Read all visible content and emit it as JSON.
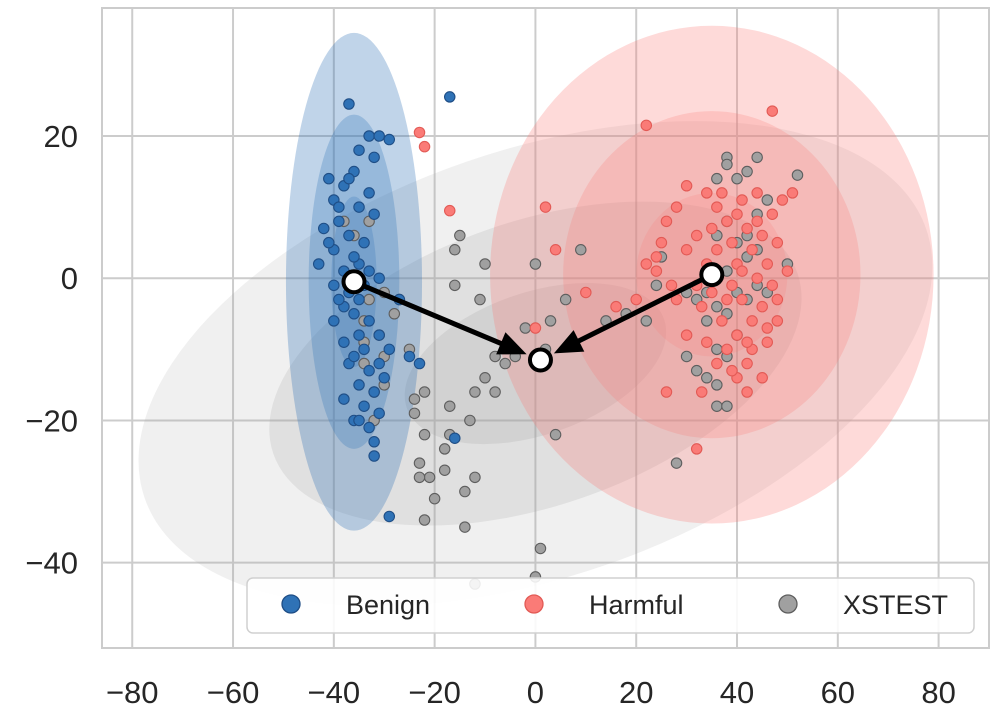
{
  "chart_data": {
    "type": "scatter",
    "title": "",
    "xlabel": "",
    "ylabel": "",
    "xlim": [
      -86,
      90
    ],
    "ylim": [
      -52,
      38
    ],
    "grid": true,
    "x_ticks": [
      -80,
      -60,
      -40,
      -20,
      0,
      20,
      40,
      60,
      80
    ],
    "x_tick_labels": [
      "−80",
      "−60",
      "−40",
      "−20",
      "0",
      "20",
      "40",
      "60",
      "80"
    ],
    "y_ticks": [
      -40,
      -20,
      0,
      20
    ],
    "y_tick_labels": [
      "−40",
      "−20",
      "0",
      "20"
    ],
    "colors": {
      "benign": "#2f72b6",
      "benign_edge": "#1f4e86",
      "harmful": "#fa7b77",
      "harmful_edge": "#e25a55",
      "xstest": "#a0a0a0",
      "xstest_edge": "#5e5e5e",
      "grid": "#cccccc",
      "arrow": "#000000"
    },
    "ellipses": [
      {
        "series": "xstest",
        "cx": 0,
        "cy": -12,
        "rx": 82,
        "ry": 30,
        "angle_deg": 19,
        "opacity": 0.16
      },
      {
        "series": "xstest",
        "cx": 0,
        "cy": -12,
        "rx": 55,
        "ry": 20,
        "angle_deg": 19,
        "opacity": 0.2
      },
      {
        "series": "xstest",
        "cx": 0,
        "cy": -12,
        "rx": 27,
        "ry": 10,
        "angle_deg": 19,
        "opacity": 0.22
      },
      {
        "series": "harmful",
        "cx": 35,
        "cy": 0.5,
        "rx": 44,
        "ry": 35,
        "angle_deg": 0,
        "opacity": 0.28
      },
      {
        "series": "harmful",
        "cx": 35,
        "cy": 0.5,
        "rx": 29.5,
        "ry": 23,
        "angle_deg": 0,
        "opacity": 0.24
      },
      {
        "series": "harmful",
        "cx": 35,
        "cy": 0.5,
        "rx": 15,
        "ry": 11.5,
        "angle_deg": 0,
        "opacity": 0.2
      },
      {
        "series": "benign",
        "cx": -36,
        "cy": -0.5,
        "rx": 13.5,
        "ry": 35,
        "angle_deg": 0,
        "opacity": 0.3
      },
      {
        "series": "benign",
        "cx": -36,
        "cy": -0.5,
        "rx": 9,
        "ry": 23.5,
        "angle_deg": 0,
        "opacity": 0.28
      },
      {
        "series": "benign",
        "cx": -36,
        "cy": -0.5,
        "rx": 4.5,
        "ry": 12,
        "angle_deg": 0,
        "opacity": 0.25
      }
    ],
    "centroids": [
      {
        "name": "benign-centroid",
        "x": -36,
        "y": -0.5
      },
      {
        "name": "harmful-centroid",
        "x": 35,
        "y": 0.5
      },
      {
        "name": "xstest-centroid",
        "x": 1,
        "y": -11.5
      }
    ],
    "arrows": [
      {
        "name": "benign-to-xstest-arrow",
        "from": [
          -36,
          -0.5
        ],
        "to": [
          1,
          -11.5
        ]
      },
      {
        "name": "harmful-to-xstest-arrow",
        "from": [
          35,
          0.5
        ],
        "to": [
          1,
          -11.5
        ]
      }
    ],
    "series": [
      {
        "name": "XSTEST",
        "key": "xstest",
        "points": [
          [
            38,
            17
          ],
          [
            44,
            17
          ],
          [
            38,
            16
          ],
          [
            40,
            14
          ],
          [
            42,
            15
          ],
          [
            36,
            14
          ],
          [
            46,
            11
          ],
          [
            52,
            14.5
          ],
          [
            44,
            9
          ],
          [
            38,
            8
          ],
          [
            42,
            6
          ],
          [
            40,
            5
          ],
          [
            36,
            6
          ],
          [
            44,
            4
          ],
          [
            42,
            3
          ],
          [
            50,
            2
          ],
          [
            38,
            1
          ],
          [
            36,
            0
          ],
          [
            44,
            -1
          ],
          [
            46,
            -2
          ],
          [
            40,
            -2
          ],
          [
            34,
            -2
          ],
          [
            32,
            -3
          ],
          [
            30,
            -2
          ],
          [
            36,
            -4
          ],
          [
            38,
            -5
          ],
          [
            42,
            -3
          ],
          [
            34,
            -6
          ],
          [
            40,
            -8
          ],
          [
            36,
            -10
          ],
          [
            38,
            -11
          ],
          [
            32,
            -13
          ],
          [
            34,
            -14
          ],
          [
            36,
            -15
          ],
          [
            30,
            -11
          ],
          [
            36,
            -18
          ],
          [
            38,
            -18
          ],
          [
            28,
            -26
          ],
          [
            18,
            -5
          ],
          [
            22,
            -6
          ],
          [
            14,
            -6
          ],
          [
            25,
            3
          ],
          [
            24,
            -1
          ],
          [
            9,
            4
          ],
          [
            6,
            -3
          ],
          [
            3,
            -6
          ],
          [
            2,
            -10
          ],
          [
            4,
            -22
          ],
          [
            0,
            2
          ],
          [
            0,
            -42
          ],
          [
            1,
            -38
          ],
          [
            -2,
            -7
          ],
          [
            -4,
            -11
          ],
          [
            -6,
            -12
          ],
          [
            -8,
            -11
          ],
          [
            -10,
            2
          ],
          [
            -11,
            -3
          ],
          [
            -10,
            -14
          ],
          [
            -8,
            -16
          ],
          [
            -12,
            -16
          ],
          [
            -13,
            -20
          ],
          [
            -12,
            -28
          ],
          [
            -14,
            -30
          ],
          [
            -14,
            -35
          ],
          [
            -12,
            -43
          ],
          [
            -15,
            6
          ],
          [
            -16,
            4
          ],
          [
            -16,
            -1
          ],
          [
            -17,
            -18
          ],
          [
            -17,
            -22
          ],
          [
            -18,
            -24
          ],
          [
            -18,
            -27
          ],
          [
            -20,
            -31
          ],
          [
            -21,
            -28
          ],
          [
            -22,
            -34
          ],
          [
            -22,
            -16
          ],
          [
            -22,
            -22
          ],
          [
            -23,
            -28
          ],
          [
            -23,
            -26
          ],
          [
            -24,
            -17
          ],
          [
            -24,
            -19
          ],
          [
            -25,
            -10
          ],
          [
            -27,
            -3
          ],
          [
            -28,
            -5
          ],
          [
            -30,
            -2
          ],
          [
            -30,
            -11
          ],
          [
            -31,
            -8
          ],
          [
            -32,
            -16
          ],
          [
            -32,
            -20
          ],
          [
            -33,
            8
          ],
          [
            -33,
            -3
          ],
          [
            -34,
            -6
          ],
          [
            -34,
            -9
          ],
          [
            -36,
            6
          ],
          [
            -38,
            8
          ],
          [
            -34,
            -12
          ],
          [
            -30,
            -15
          ]
        ]
      },
      {
        "name": "Harmful",
        "key": "harmful",
        "points": [
          [
            47,
            23.5
          ],
          [
            -23,
            20.5
          ],
          [
            -22,
            18.5
          ],
          [
            22,
            21.5
          ],
          [
            -17,
            9.5
          ],
          [
            2,
            10
          ],
          [
            4,
            4
          ],
          [
            0,
            -7
          ],
          [
            10,
            -2
          ],
          [
            16,
            -4
          ],
          [
            20,
            -3
          ],
          [
            22,
            2
          ],
          [
            24,
            3
          ],
          [
            25,
            5
          ],
          [
            26,
            8
          ],
          [
            28,
            10
          ],
          [
            30,
            13
          ],
          [
            32,
            6
          ],
          [
            33,
            -4
          ],
          [
            34,
            2
          ],
          [
            35,
            -2
          ],
          [
            36,
            4
          ],
          [
            37,
            -6
          ],
          [
            38,
            8
          ],
          [
            38,
            -10
          ],
          [
            39,
            5
          ],
          [
            40,
            2
          ],
          [
            40,
            -8
          ],
          [
            41,
            11
          ],
          [
            41,
            -3
          ],
          [
            42,
            7
          ],
          [
            42,
            -12
          ],
          [
            43,
            4
          ],
          [
            43,
            -6
          ],
          [
            44,
            0
          ],
          [
            44,
            12
          ],
          [
            45,
            -4
          ],
          [
            45,
            6
          ],
          [
            46,
            -9
          ],
          [
            46,
            2
          ],
          [
            47,
            9
          ],
          [
            47,
            -1
          ],
          [
            48,
            5
          ],
          [
            48,
            -6
          ],
          [
            49,
            11
          ],
          [
            50,
            1
          ],
          [
            51,
            12
          ],
          [
            37,
            12
          ],
          [
            36,
            -12
          ],
          [
            40,
            -14
          ],
          [
            42,
            -16
          ],
          [
            33,
            -16
          ],
          [
            26,
            -16
          ],
          [
            32,
            -24
          ],
          [
            28,
            -3
          ],
          [
            30,
            -8
          ],
          [
            34,
            -9
          ],
          [
            36,
            0
          ],
          [
            39,
            -1
          ],
          [
            41,
            1
          ],
          [
            43,
            -10
          ],
          [
            45,
            -14
          ],
          [
            24,
            1
          ],
          [
            27,
            -1
          ],
          [
            30,
            4
          ],
          [
            32,
            -1
          ],
          [
            35,
            7
          ],
          [
            38,
            -3
          ],
          [
            40,
            9
          ],
          [
            44,
            8
          ],
          [
            46,
            -7
          ],
          [
            48,
            -3
          ],
          [
            39,
            -13
          ],
          [
            42,
            -9
          ],
          [
            36,
            10
          ],
          [
            34,
            12
          ]
        ]
      },
      {
        "name": "Benign",
        "key": "benign",
        "points": [
          [
            -37,
            24.5
          ],
          [
            -17,
            25.5
          ],
          [
            -33,
            20
          ],
          [
            -31,
            20
          ],
          [
            -29,
            19.5
          ],
          [
            -35,
            18
          ],
          [
            -32,
            17
          ],
          [
            -36,
            15
          ],
          [
            -38,
            13
          ],
          [
            -41,
            14
          ],
          [
            -33,
            12
          ],
          [
            -40,
            11
          ],
          [
            -35,
            10
          ],
          [
            -39,
            8
          ],
          [
            -32,
            9
          ],
          [
            -42,
            7
          ],
          [
            -37,
            6
          ],
          [
            -34,
            5
          ],
          [
            -40,
            4
          ],
          [
            -43,
            2
          ],
          [
            -38,
            1
          ],
          [
            -35,
            2
          ],
          [
            -33,
            1
          ],
          [
            -31,
            0
          ],
          [
            -40,
            -1
          ],
          [
            -37,
            -2
          ],
          [
            -34,
            -1
          ],
          [
            -38,
            -4
          ],
          [
            -36,
            -5
          ],
          [
            -33,
            -6
          ],
          [
            -40,
            -6
          ],
          [
            -35,
            -8
          ],
          [
            -31,
            -8
          ],
          [
            -38,
            -9
          ],
          [
            -34,
            -10
          ],
          [
            -29,
            -10
          ],
          [
            -37,
            -12
          ],
          [
            -33,
            -13
          ],
          [
            -30,
            -14
          ],
          [
            -35,
            -15
          ],
          [
            -32,
            -16
          ],
          [
            -38,
            -17
          ],
          [
            -34,
            -18
          ],
          [
            -31,
            -19
          ],
          [
            -33,
            -21
          ],
          [
            -36,
            -20
          ],
          [
            -32,
            -25
          ],
          [
            -29,
            -33.5
          ],
          [
            -16,
            -22.5
          ],
          [
            -23,
            -12
          ],
          [
            -25,
            -11
          ],
          [
            -27,
            -3
          ],
          [
            -39,
            -3
          ],
          [
            -36,
            3
          ],
          [
            -39,
            10
          ],
          [
            -37,
            14
          ],
          [
            -41,
            5
          ],
          [
            -35,
            -3
          ],
          [
            -36,
            -11
          ],
          [
            -31,
            -12
          ],
          [
            -35,
            -20
          ],
          [
            -32,
            -23
          ]
        ]
      }
    ],
    "legend": {
      "position": "lower-right",
      "entries": [
        {
          "label": "Benign",
          "key": "benign"
        },
        {
          "label": "Harmful",
          "key": "harmful"
        },
        {
          "label": "XSTEST",
          "key": "xstest"
        }
      ]
    }
  }
}
